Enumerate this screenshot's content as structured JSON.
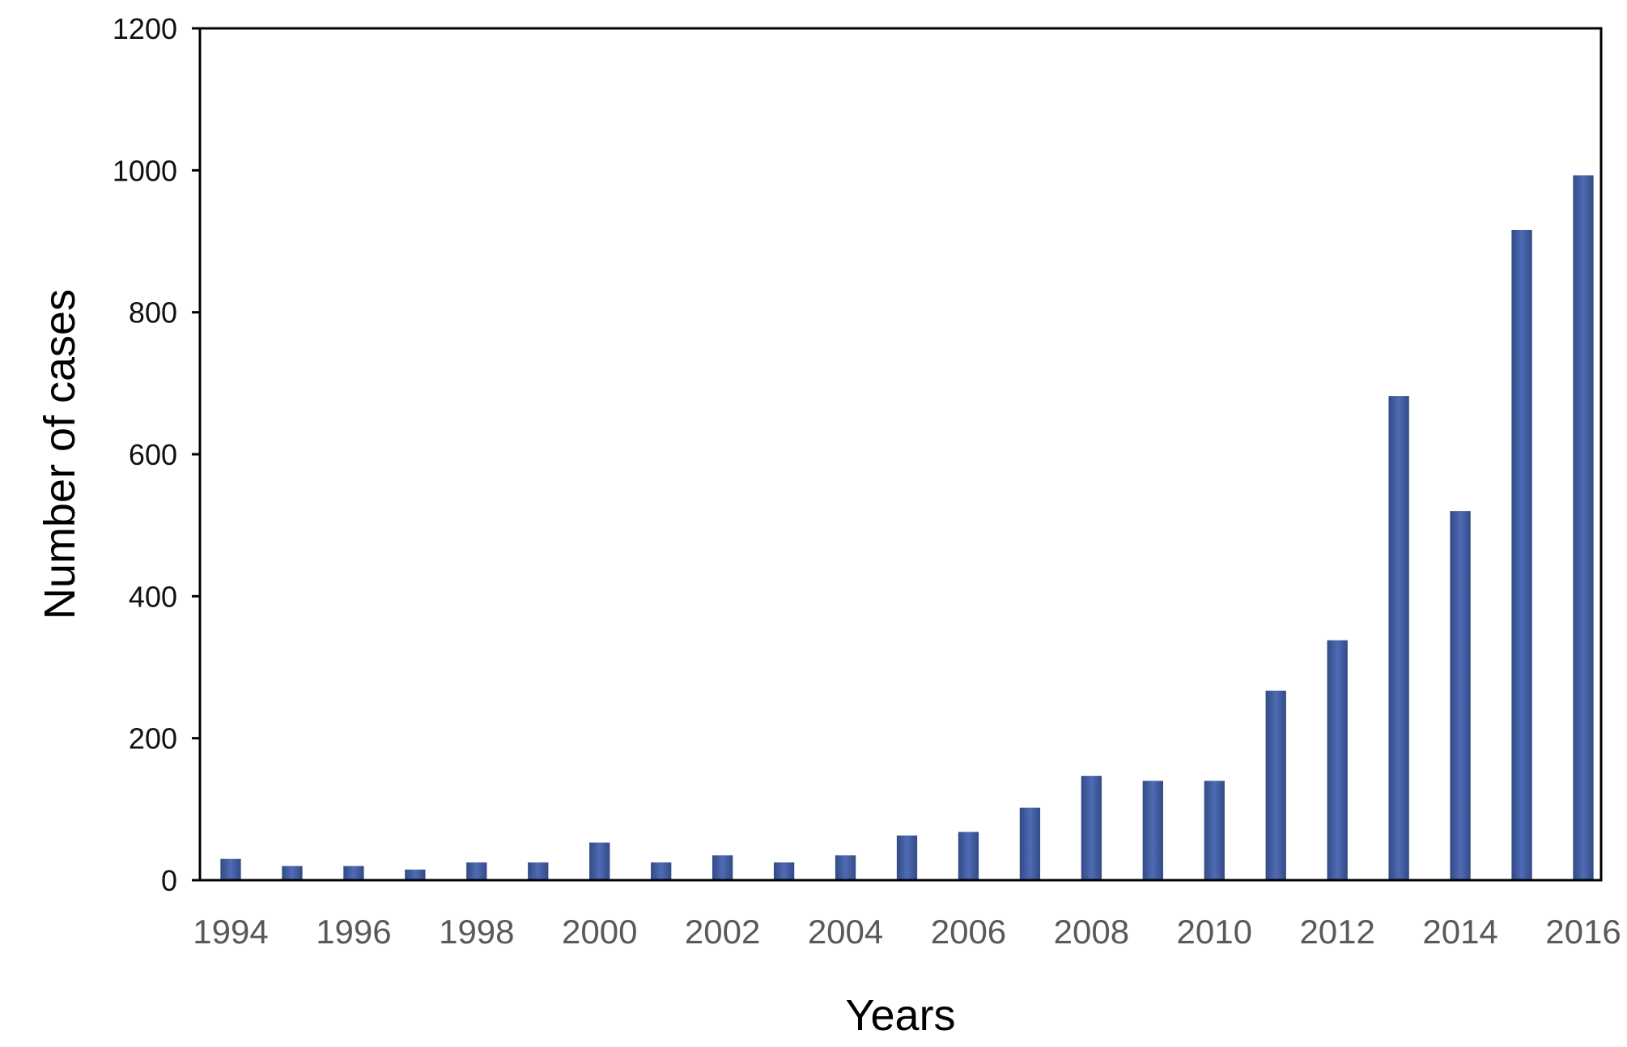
{
  "chart_data": {
    "type": "bar",
    "title": "",
    "xlabel": "Years",
    "ylabel": "Number of cases",
    "ylim": [
      0,
      1200
    ],
    "yticks": [
      "0",
      "200",
      "400",
      "600",
      "800",
      "1000",
      "1200"
    ],
    "categories": [
      "1994",
      "1995",
      "1996",
      "1997",
      "1998",
      "1999",
      "2000",
      "2001",
      "2002",
      "2003",
      "2004",
      "2005",
      "2006",
      "2007",
      "2008",
      "2009",
      "2010",
      "2011",
      "2012",
      "2013",
      "2014",
      "2015",
      "2016"
    ],
    "xtick_labels": [
      "1994",
      "1996",
      "1998",
      "2000",
      "2002",
      "2004",
      "2006",
      "2008",
      "2010",
      "2012",
      "2014",
      "2016"
    ],
    "values": [
      30,
      20,
      20,
      15,
      25,
      25,
      53,
      25,
      35,
      25,
      35,
      63,
      68,
      102,
      147,
      140,
      140,
      267,
      338,
      682,
      520,
      916,
      993
    ],
    "grid": false,
    "legend": "none",
    "colors": {
      "bar_light": "#4f6bb5",
      "bar_dark": "#324a85",
      "axis": "#000000"
    }
  }
}
